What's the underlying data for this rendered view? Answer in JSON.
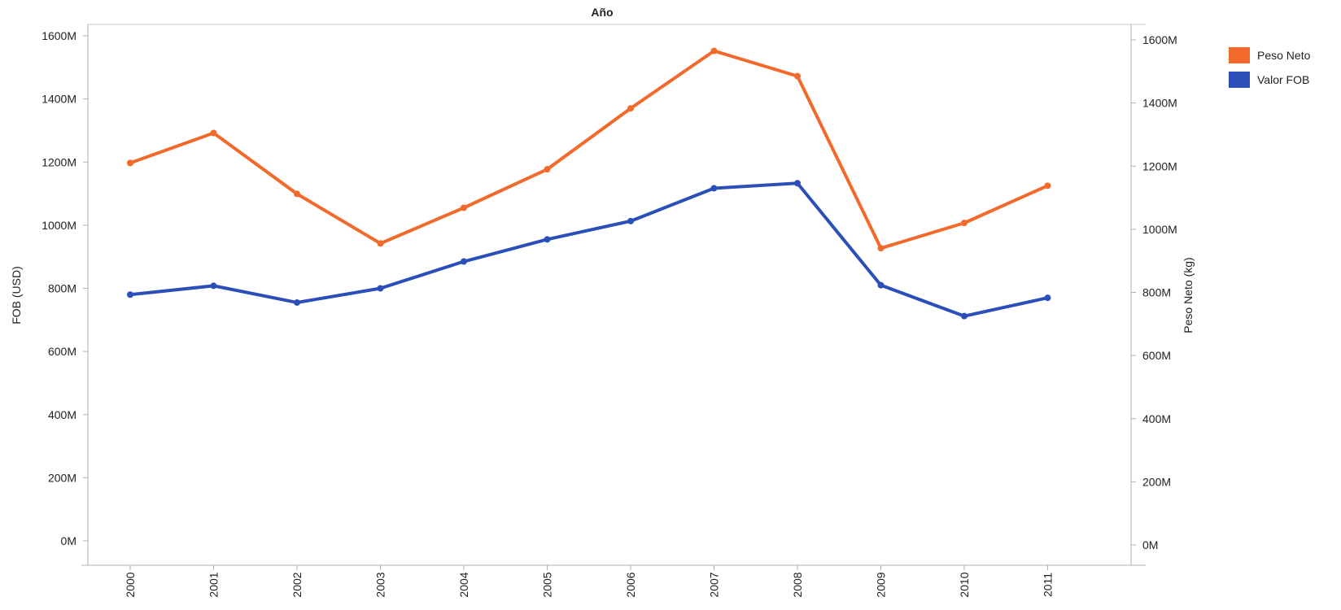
{
  "chart_data": {
    "type": "line",
    "title": "Año",
    "categories": [
      "2000",
      "2001",
      "2002",
      "2003",
      "2004",
      "2005",
      "2006",
      "2007",
      "2008",
      "2009",
      "2010",
      "2011"
    ],
    "ylabel_left": "FOB (USD)",
    "ylabel_right": "Peso Neto (kg)",
    "ylim_left": [
      0,
      1600
    ],
    "ylim_right": [
      0,
      1600
    ],
    "unit_suffix": "M",
    "yticks_left": [
      "0M",
      "200M",
      "400M",
      "600M",
      "800M",
      "1000M",
      "1200M",
      "1400M",
      "1600M"
    ],
    "yticks_right": [
      "0M",
      "200M",
      "400M",
      "600M",
      "800M",
      "1000M",
      "1200M",
      "1400M",
      "1600M"
    ],
    "grid": false,
    "legend_position": "right",
    "series": [
      {
        "name": "Peso Neto",
        "axis": "right",
        "color": "#f26a2b",
        "values": [
          1210,
          1305,
          1112,
          955,
          1068,
          1190,
          1383,
          1565,
          1485,
          940,
          1020,
          1138
        ]
      },
      {
        "name": "Valor FOB",
        "axis": "left",
        "color": "#2b4fb8",
        "values": [
          780,
          808,
          755,
          800,
          885,
          955,
          1013,
          1117,
          1133,
          810,
          712,
          770
        ]
      }
    ]
  }
}
